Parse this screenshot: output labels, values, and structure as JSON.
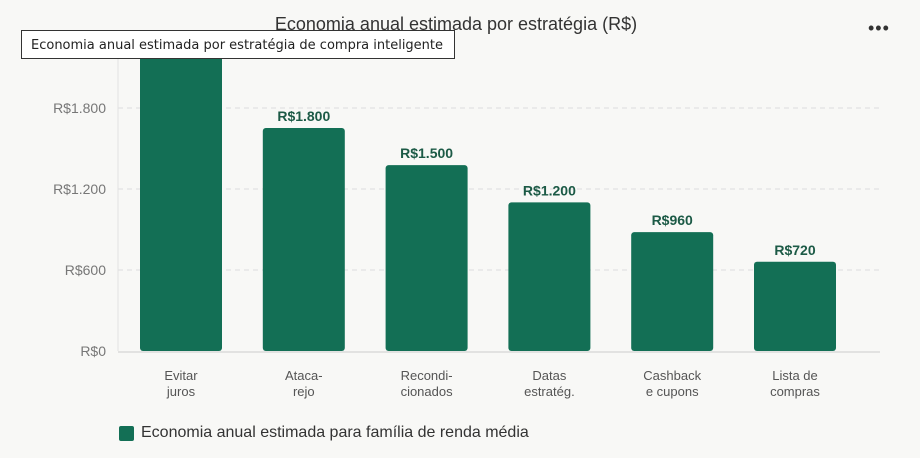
{
  "menu_icon": "more-horizontal-icon",
  "tooltip": "Economia anual estimada por estratégia de compra inteligente",
  "chart_data": {
    "type": "bar",
    "title": "Economia anual estimada por estratégia (R$)",
    "categories": [
      [
        "Evitar",
        "juros"
      ],
      [
        "Ataca-",
        "rejo"
      ],
      [
        "Recondi-",
        "cionados"
      ],
      [
        "Datas",
        "estratég."
      ],
      [
        "Cashback",
        "e cupons"
      ],
      [
        "Lista de",
        "compras"
      ]
    ],
    "series": [
      {
        "name": "Economia anual estimada para família de renda média",
        "values": [
          2400,
          1800,
          1500,
          1200,
          960,
          720
        ],
        "color": "#136f55"
      }
    ],
    "data_labels": [
      "",
      "R$1.800",
      "R$1.500",
      "R$1.200",
      "R$960",
      "R$720"
    ],
    "yticks": [
      0,
      600,
      1200,
      1800
    ],
    "ytick_labels": [
      "R$0",
      "R$600",
      "R$1.200",
      "R$1.800"
    ],
    "grid": true,
    "legend": "bottom-left"
  }
}
